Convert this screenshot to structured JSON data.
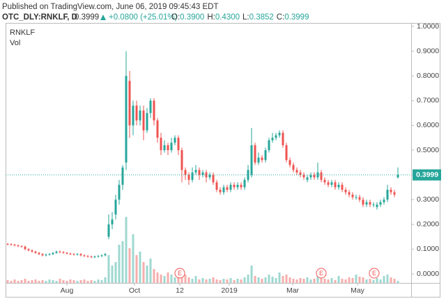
{
  "published": "Published on TradingView.com, June 06, 2019 09:45:43 EDT",
  "symbol": "OTC_DLY:RNKLF, D",
  "change": "+0.0800 (+25.01%)",
  "ohlc_header": [
    [
      "O:",
      "0.3900"
    ],
    [
      "H:",
      "0.4300"
    ],
    [
      "L:",
      "0.3852"
    ],
    [
      "C:",
      "0.3999"
    ]
  ],
  "chart_data": {
    "type": "candlestick",
    "series_name": "RNKLF",
    "volume_name": "Vol",
    "up_color": "#26a69a",
    "down_color": "#ef5350",
    "volume_up_color": "#9ed8d0",
    "volume_down_color": "#f5aeac",
    "grid": false,
    "x": [
      0,
      1,
      2,
      3,
      4,
      5,
      6,
      7,
      8,
      9,
      10,
      11,
      12,
      13,
      14,
      15,
      16,
      17,
      18,
      19,
      20,
      21,
      22,
      23,
      24,
      25,
      26,
      27,
      28,
      29,
      30,
      31,
      32,
      33,
      34,
      35,
      36,
      37,
      38,
      39,
      40,
      41,
      42,
      43,
      44,
      45,
      46,
      47,
      48,
      49,
      50,
      51,
      52,
      53,
      54,
      55,
      56,
      57,
      58,
      59,
      60,
      61,
      62,
      63,
      64,
      65,
      66,
      67,
      68,
      69,
      70,
      71,
      72,
      73,
      74,
      75,
      76,
      77,
      78,
      79,
      80,
      81,
      82,
      83,
      84,
      85,
      86,
      87,
      88,
      89,
      90,
      91,
      92,
      93,
      94,
      95,
      96,
      97,
      98,
      99,
      100,
      101,
      102,
      103,
      104,
      105,
      106,
      107,
      108,
      109,
      110,
      111,
      112
    ],
    "open": [
      0.121,
      0.12,
      0.118,
      0.115,
      0.112,
      0.11,
      0.1,
      0.095,
      0.09,
      0.085,
      0.08,
      0.075,
      0.078,
      0.08,
      0.085,
      0.09,
      0.088,
      0.085,
      0.082,
      0.08,
      0.078,
      0.08,
      0.075,
      0.072,
      0.07,
      0.068,
      0.07,
      0.072,
      0.075,
      0.15,
      0.2,
      0.24,
      0.3,
      0.36,
      0.45,
      0.78,
      0.6,
      0.68,
      0.62,
      0.66,
      0.58,
      0.65,
      0.7,
      0.62,
      0.55,
      0.5,
      0.52,
      0.5,
      0.53,
      0.55,
      0.5,
      0.42,
      0.4,
      0.38,
      0.41,
      0.42,
      0.4,
      0.41,
      0.39,
      0.4,
      0.37,
      0.34,
      0.33,
      0.35,
      0.34,
      0.36,
      0.35,
      0.36,
      0.35,
      0.38,
      0.4,
      0.52,
      0.45,
      0.47,
      0.46,
      0.5,
      0.54,
      0.55,
      0.56,
      0.57,
      0.52,
      0.46,
      0.44,
      0.42,
      0.41,
      0.4,
      0.38,
      0.39,
      0.4,
      0.39,
      0.41,
      0.38,
      0.37,
      0.36,
      0.37,
      0.35,
      0.36,
      0.34,
      0.33,
      0.32,
      0.31,
      0.31,
      0.3,
      0.28,
      0.29,
      0.28,
      0.27,
      0.28,
      0.29,
      0.3,
      0.34,
      0.33,
      0.39
    ],
    "high": [
      0.125,
      0.124,
      0.122,
      0.119,
      0.116,
      0.114,
      0.104,
      0.099,
      0.094,
      0.089,
      0.084,
      0.082,
      0.084,
      0.089,
      0.094,
      0.094,
      0.092,
      0.089,
      0.086,
      0.084,
      0.084,
      0.084,
      0.079,
      0.076,
      0.074,
      0.074,
      0.076,
      0.079,
      0.084,
      0.24,
      0.25,
      0.32,
      0.38,
      0.44,
      0.9,
      0.82,
      0.7,
      0.7,
      0.68,
      0.68,
      0.67,
      0.71,
      0.71,
      0.63,
      0.57,
      0.54,
      0.53,
      0.55,
      0.56,
      0.56,
      0.51,
      0.43,
      0.41,
      0.43,
      0.44,
      0.43,
      0.42,
      0.42,
      0.41,
      0.41,
      0.38,
      0.35,
      0.36,
      0.36,
      0.37,
      0.37,
      0.37,
      0.37,
      0.39,
      0.44,
      0.59,
      0.53,
      0.49,
      0.48,
      0.51,
      0.55,
      0.57,
      0.57,
      0.58,
      0.58,
      0.53,
      0.47,
      0.45,
      0.43,
      0.42,
      0.41,
      0.4,
      0.41,
      0.41,
      0.45,
      0.42,
      0.39,
      0.38,
      0.38,
      0.38,
      0.37,
      0.37,
      0.35,
      0.34,
      0.33,
      0.32,
      0.32,
      0.31,
      0.3,
      0.3,
      0.29,
      0.29,
      0.3,
      0.31,
      0.36,
      0.35,
      0.34,
      0.43
    ],
    "low": [
      0.116,
      0.114,
      0.111,
      0.108,
      0.106,
      0.096,
      0.091,
      0.086,
      0.081,
      0.076,
      0.071,
      0.071,
      0.074,
      0.076,
      0.081,
      0.084,
      0.081,
      0.078,
      0.076,
      0.074,
      0.074,
      0.071,
      0.068,
      0.066,
      0.064,
      0.064,
      0.066,
      0.068,
      0.071,
      0.14,
      0.18,
      0.22,
      0.28,
      0.34,
      0.42,
      0.55,
      0.56,
      0.6,
      0.6,
      0.54,
      0.57,
      0.63,
      0.6,
      0.53,
      0.48,
      0.49,
      0.48,
      0.49,
      0.52,
      0.48,
      0.37,
      0.38,
      0.36,
      0.37,
      0.4,
      0.38,
      0.39,
      0.37,
      0.38,
      0.36,
      0.33,
      0.32,
      0.32,
      0.33,
      0.33,
      0.34,
      0.34,
      0.34,
      0.34,
      0.37,
      0.39,
      0.44,
      0.44,
      0.45,
      0.45,
      0.49,
      0.53,
      0.54,
      0.55,
      0.51,
      0.45,
      0.43,
      0.41,
      0.4,
      0.39,
      0.38,
      0.37,
      0.38,
      0.38,
      0.38,
      0.37,
      0.36,
      0.35,
      0.35,
      0.34,
      0.34,
      0.33,
      0.32,
      0.31,
      0.3,
      0.3,
      0.29,
      0.27,
      0.27,
      0.27,
      0.27,
      0.26,
      0.27,
      0.28,
      0.29,
      0.32,
      0.31,
      0.3852
    ],
    "close": [
      0.12,
      0.118,
      0.115,
      0.112,
      0.11,
      0.1,
      0.095,
      0.09,
      0.085,
      0.08,
      0.075,
      0.078,
      0.08,
      0.085,
      0.09,
      0.088,
      0.085,
      0.082,
      0.08,
      0.078,
      0.08,
      0.075,
      0.072,
      0.07,
      0.068,
      0.07,
      0.072,
      0.075,
      0.08,
      0.2,
      0.22,
      0.3,
      0.36,
      0.43,
      0.8,
      0.6,
      0.68,
      0.62,
      0.66,
      0.58,
      0.65,
      0.7,
      0.62,
      0.55,
      0.5,
      0.52,
      0.5,
      0.53,
      0.55,
      0.5,
      0.42,
      0.4,
      0.38,
      0.41,
      0.42,
      0.4,
      0.41,
      0.39,
      0.4,
      0.37,
      0.34,
      0.33,
      0.35,
      0.34,
      0.36,
      0.35,
      0.36,
      0.35,
      0.38,
      0.42,
      0.52,
      0.45,
      0.47,
      0.46,
      0.5,
      0.54,
      0.55,
      0.56,
      0.57,
      0.52,
      0.46,
      0.44,
      0.42,
      0.41,
      0.4,
      0.39,
      0.39,
      0.4,
      0.39,
      0.41,
      0.38,
      0.37,
      0.36,
      0.37,
      0.35,
      0.36,
      0.34,
      0.33,
      0.32,
      0.31,
      0.31,
      0.3,
      0.28,
      0.29,
      0.28,
      0.28,
      0.28,
      0.29,
      0.3,
      0.34,
      0.33,
      0.32,
      0.3999
    ],
    "volume": [
      4,
      3,
      5,
      3,
      4,
      6,
      3,
      4,
      5,
      3,
      4,
      3,
      5,
      4,
      3,
      6,
      4,
      3,
      5,
      4,
      3,
      4,
      5,
      3,
      4,
      3,
      5,
      4,
      8,
      40,
      25,
      30,
      55,
      60,
      95,
      50,
      70,
      40,
      45,
      30,
      25,
      35,
      20,
      15,
      12,
      10,
      15,
      12,
      8,
      10,
      20,
      12,
      8,
      6,
      10,
      5,
      7,
      5,
      6,
      8,
      5,
      4,
      6,
      5,
      7,
      4,
      6,
      5,
      8,
      12,
      25,
      10,
      8,
      6,
      8,
      12,
      9,
      7,
      15,
      10,
      12,
      8,
      6,
      5,
      7,
      6,
      8,
      5,
      6,
      15,
      8,
      6,
      5,
      7,
      4,
      10,
      6,
      5,
      8,
      7,
      12,
      9,
      8,
      5,
      6,
      4,
      7,
      5,
      10,
      12,
      8,
      6,
      3
    ],
    "xlim": [
      -0.6,
      115.8
    ],
    "xticks": [
      {
        "value": 17,
        "label": "Aug"
      },
      {
        "value": 36.4,
        "label": "Oct"
      },
      {
        "value": 49.4,
        "label": "12"
      },
      {
        "value": 63.6,
        "label": "2019"
      },
      {
        "value": 81.8,
        "label": "Mar"
      },
      {
        "value": 100.4,
        "label": "May"
      }
    ],
    "ylim": [
      -0.0365,
      1.014
    ],
    "yticks": [
      {
        "value": 0,
        "label": "0.0000"
      },
      {
        "value": 0.1,
        "label": "0.1000"
      },
      {
        "value": 0.2,
        "label": "0.2000"
      },
      {
        "value": 0.3,
        "label": "0.3000"
      },
      {
        "value": 0.4,
        "label": "0.4000"
      },
      {
        "value": 0.5,
        "label": "0.5000"
      },
      {
        "value": 0.6,
        "label": "0.6000"
      },
      {
        "value": 0.7,
        "label": "0.7000"
      },
      {
        "value": 0.8,
        "label": "0.8000"
      },
      {
        "value": 0.9,
        "label": "0.9000"
      },
      {
        "value": 1,
        "label": "1.0000"
      }
    ],
    "events": [
      {
        "x": 49.4,
        "label": "E"
      },
      {
        "x": 90,
        "label": "E"
      },
      {
        "x": 105.2,
        "label": "E"
      }
    ]
  }
}
